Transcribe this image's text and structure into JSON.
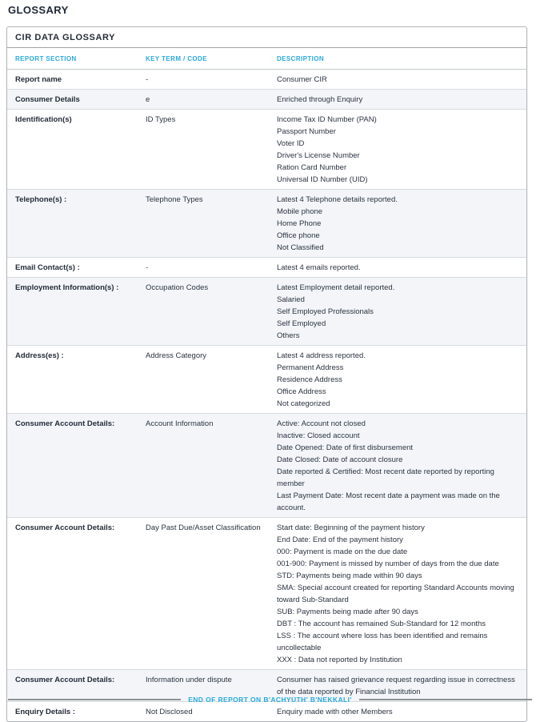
{
  "page": {
    "title": "GLOSSARY"
  },
  "panel": {
    "title": "CIR DATA GLOSSARY"
  },
  "table": {
    "columns": [
      "REPORT SECTION",
      "KEY TERM / CODE",
      "DESCRIPTION"
    ],
    "rows": [
      {
        "section": "Report name",
        "key": "-",
        "description": [
          "Consumer CIR"
        ]
      },
      {
        "section": "Consumer Details",
        "key": "e",
        "description": [
          "Enriched through Enquiry"
        ]
      },
      {
        "section": "Identification(s)",
        "key": "ID Types",
        "description": [
          "Income Tax ID Number (PAN)",
          "Passport Number",
          "Voter ID",
          "Driver's License Number",
          "Ration Card Number",
          "Universal ID Number (UID)"
        ]
      },
      {
        "section": "Telephone(s) :",
        "key": "Telephone Types",
        "description": [
          "Latest 4 Telephone details reported.",
          "Mobile phone",
          "Home Phone",
          "Office phone",
          "Not Classified"
        ]
      },
      {
        "section": "Email Contact(s) :",
        "key": "-",
        "description": [
          "Latest 4 emails reported."
        ]
      },
      {
        "section": "Employment Information(s) :",
        "key": "Occupation Codes",
        "description": [
          "Latest Employment detail reported.",
          "Salaried",
          "Self Employed Professionals",
          "Self Employed",
          "Others"
        ]
      },
      {
        "section": "Address(es) :",
        "key": "Address Category",
        "description": [
          "Latest 4 address reported.",
          "Permanent Address",
          "Residence Address",
          "Office Address",
          "Not categorized"
        ]
      },
      {
        "section": "Consumer Account Details:",
        "key": "Account Information",
        "description": [
          "Active: Account not closed",
          "Inactive: Closed account",
          "Date Opened: Date of first disbursement",
          "Date Closed: Date of account closure",
          "Date reported & Certified: Most recent date reported by reporting member",
          "Last Payment Date: Most recent date a payment was made on the account."
        ]
      },
      {
        "section": "Consumer Account Details:",
        "key": "Day Past Due/Asset Classification",
        "description": [
          "Start date: Beginning of the payment history",
          "End Date: End of the payment history",
          "000: Payment is made on the due date",
          "001-900: Payment is missed by number of days from the due date",
          "STD: Payments being made within 90 days",
          "SMA: Special account created for reporting Standard Accounts moving toward Sub-Standard",
          "SUB: Payments being made after 90 days",
          "DBT : The account has remained Sub-Standard for 12 months",
          "LSS : The account where loss has been identified and remains uncollectable",
          "XXX : Data not reported by Institution"
        ]
      },
      {
        "section": "Consumer Account Details:",
        "key": "Information under dispute",
        "description": [
          "Consumer has raised grievance request regarding issue in correctness of the data reported by Financial Institution"
        ]
      },
      {
        "section": "Enquiry Details :",
        "key": "Not Disclosed",
        "description": [
          "Enquiry made with other Members"
        ]
      }
    ]
  },
  "footer": {
    "end_text": "END OF REPORT ON B'ACHYUTH' B'NEKKALI'"
  },
  "colors": {
    "accent_cyan": "#29a9e0"
  }
}
